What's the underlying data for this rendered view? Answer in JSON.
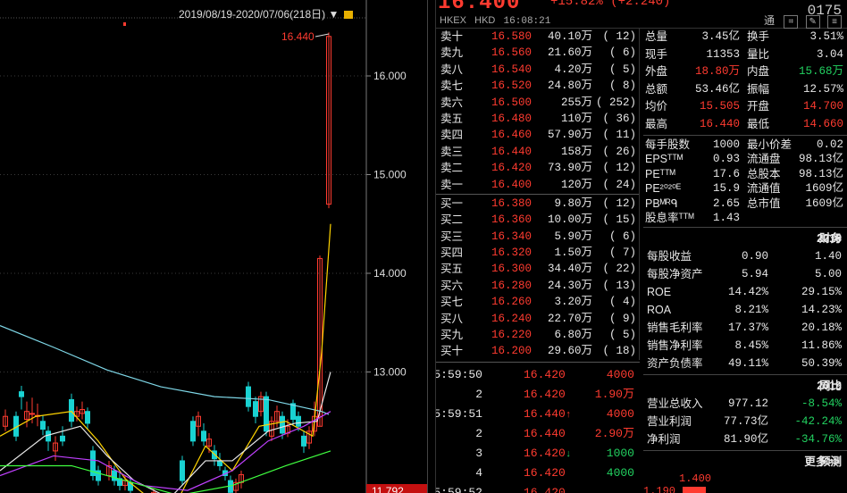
{
  "chart": {
    "range_label": "2019/08/19-2020/07/06(218日)",
    "y_ticks": [
      "16.000",
      "15.000",
      "14.000",
      "13.000"
    ],
    "high_label": "16.440",
    "current_label": "11.792",
    "colors": {
      "up": "#ff3b30",
      "down": "#19d2d2",
      "ma1": "#e8e8e8",
      "ma2": "#ffd400",
      "ma3": "#c040ff",
      "ma4": "#40ff40",
      "ma5": "#7fd8e8"
    }
  },
  "header": {
    "price": "16.400",
    "change": "+15.82% (+2.240)",
    "code": "0175",
    "exchange": "HKEX",
    "currency": "HKD",
    "time": "16:08:21",
    "icons": [
      "通",
      "chart-icon",
      "edit-icon",
      "menu-icon"
    ]
  },
  "order_book": {
    "asks": [
      {
        "label": "卖十",
        "price": "16.580",
        "vol": "40.10万",
        "count": "( 12)"
      },
      {
        "label": "卖九",
        "price": "16.560",
        "vol": "21.60万",
        "count": "( 6)"
      },
      {
        "label": "卖八",
        "price": "16.540",
        "vol": "4.20万",
        "count": "( 5)"
      },
      {
        "label": "卖七",
        "price": "16.520",
        "vol": "24.80万",
        "count": "( 8)"
      },
      {
        "label": "卖六",
        "price": "16.500",
        "vol": "255万",
        "count": "( 252)"
      },
      {
        "label": "卖五",
        "price": "16.480",
        "vol": "110万",
        "count": "( 36)"
      },
      {
        "label": "卖四",
        "price": "16.460",
        "vol": "57.90万",
        "count": "( 11)"
      },
      {
        "label": "卖三",
        "price": "16.440",
        "vol": "158万",
        "count": "( 26)"
      },
      {
        "label": "卖二",
        "price": "16.420",
        "vol": "73.90万",
        "count": "( 12)"
      },
      {
        "label": "卖一",
        "price": "16.400",
        "vol": "120万",
        "count": "( 24)"
      }
    ],
    "bids": [
      {
        "label": "买一",
        "price": "16.380",
        "vol": "9.80万",
        "count": "( 12)"
      },
      {
        "label": "买二",
        "price": "16.360",
        "vol": "10.00万",
        "count": "( 15)"
      },
      {
        "label": "买三",
        "price": "16.340",
        "vol": "5.90万",
        "count": "( 6)"
      },
      {
        "label": "买四",
        "price": "16.320",
        "vol": "1.50万",
        "count": "( 7)"
      },
      {
        "label": "买五",
        "price": "16.300",
        "vol": "34.40万",
        "count": "( 22)"
      },
      {
        "label": "买六",
        "price": "16.280",
        "vol": "24.30万",
        "count": "( 13)"
      },
      {
        "label": "买七",
        "price": "16.260",
        "vol": "3.20万",
        "count": "( 4)"
      },
      {
        "label": "买八",
        "price": "16.240",
        "vol": "22.70万",
        "count": "( 9)"
      },
      {
        "label": "买九",
        "price": "16.220",
        "vol": "6.80万",
        "count": "( 5)"
      },
      {
        "label": "买十",
        "price": "16.200",
        "vol": "29.60万",
        "count": "( 18)"
      }
    ]
  },
  "trades": [
    {
      "time": "15:59:50",
      "price": "16.420",
      "vol": "4000",
      "dir": ""
    },
    {
      "time": "2",
      "price": "16.420",
      "vol": "1.90万",
      "dir": ""
    },
    {
      "time": "15:59:51",
      "price": "16.440",
      "vol": "4000",
      "dir": "↑"
    },
    {
      "time": "2",
      "price": "16.440",
      "vol": "2.90万",
      "dir": ""
    },
    {
      "time": "3",
      "price": "16.420",
      "vol": "1000",
      "dir": "↓"
    },
    {
      "time": "4",
      "price": "16.420",
      "vol": "4000",
      "dir": ""
    },
    {
      "time": "15:59:52",
      "price": "16.420",
      "vol": "",
      "dir": ""
    }
  ],
  "stats": [
    {
      "k1": "总量",
      "v1": "3.45亿",
      "c1": "w",
      "k2": "换手",
      "v2": "3.51%",
      "c2": "w"
    },
    {
      "k1": "现手",
      "v1": "11353",
      "c1": "w",
      "k2": "量比",
      "v2": "3.04",
      "c2": "w"
    },
    {
      "k1": "外盘",
      "v1": "18.80万",
      "c1": "r",
      "k2": "内盘",
      "v2": "15.68万",
      "c2": "g"
    },
    {
      "k1": "总额",
      "v1": "53.46亿",
      "c1": "w",
      "k2": "振幅",
      "v2": "12.57%",
      "c2": "w"
    },
    {
      "k1": "均价",
      "v1": "15.505",
      "c1": "r",
      "k2": "开盘",
      "v2": "14.700",
      "c2": "r"
    },
    {
      "k1": "最高",
      "v1": "16.440",
      "c1": "r",
      "k2": "最低",
      "v2": "14.660",
      "c2": "r"
    }
  ],
  "stats2": [
    {
      "k1": "每手股数",
      "v1": "1000",
      "k2": "最小价差",
      "v2": "0.02"
    },
    {
      "k1": "EPSᵀᵀᴹ",
      "v1": "0.93",
      "k2": "流通盘",
      "v2": "98.13亿"
    },
    {
      "k1": "PEᵀᵀᴹ",
      "v1": "17.6",
      "k2": "总股本",
      "v2": "98.13亿"
    },
    {
      "k1": "PE²⁰²⁰ᴱ",
      "v1": "15.9",
      "k2": "流通值",
      "v2": "1609亿"
    },
    {
      "k1": "PBᴹᴿᑫ",
      "v1": "2.65",
      "k2": "总市值",
      "v2": "1609亿"
    },
    {
      "k1": "股息率ᵀᵀᴹ",
      "v1": "1.43",
      "k2": "",
      "v2": ""
    }
  ],
  "finance": {
    "header": {
      "k": "财务",
      "a": "2019",
      "b": "2018"
    },
    "rows": [
      {
        "k": "每股收益",
        "a": "0.90",
        "b": "1.40",
        "ca": "w",
        "cb": "w"
      },
      {
        "k": "每股净资产",
        "a": "5.94",
        "b": "5.00",
        "ca": "w",
        "cb": "w"
      },
      {
        "k": "ROE",
        "a": "14.42%",
        "b": "29.15%",
        "ca": "w",
        "cb": "w"
      },
      {
        "k": "ROA",
        "a": "8.21%",
        "b": "14.23%",
        "ca": "w",
        "cb": "w"
      },
      {
        "k": "销售毛利率",
        "a": "17.37%",
        "b": "20.18%",
        "ca": "w",
        "cb": "w"
      },
      {
        "k": "销售净利率",
        "a": "8.45%",
        "b": "11.86%",
        "ca": "w",
        "cb": "w"
      },
      {
        "k": "资产负债率",
        "a": "49.11%",
        "b": "50.39%",
        "ca": "w",
        "cb": "w"
      }
    ],
    "header2": {
      "k": "",
      "a": "2019",
      "b": "同比"
    },
    "rows2": [
      {
        "k": "营业总收入",
        "a": "977.12",
        "b": "-8.54%",
        "ca": "w",
        "cb": "g"
      },
      {
        "k": "营业利润",
        "a": "77.73亿",
        "b": "-42.24%",
        "ca": "w",
        "cb": "g"
      },
      {
        "k": "净利润",
        "a": "81.90亿",
        "b": "-34.76%",
        "ca": "w",
        "cb": "g"
      }
    ],
    "forecast": {
      "k": "预测",
      "more": "更多>>",
      "v1": "1.400",
      "v2": "1.190"
    }
  }
}
